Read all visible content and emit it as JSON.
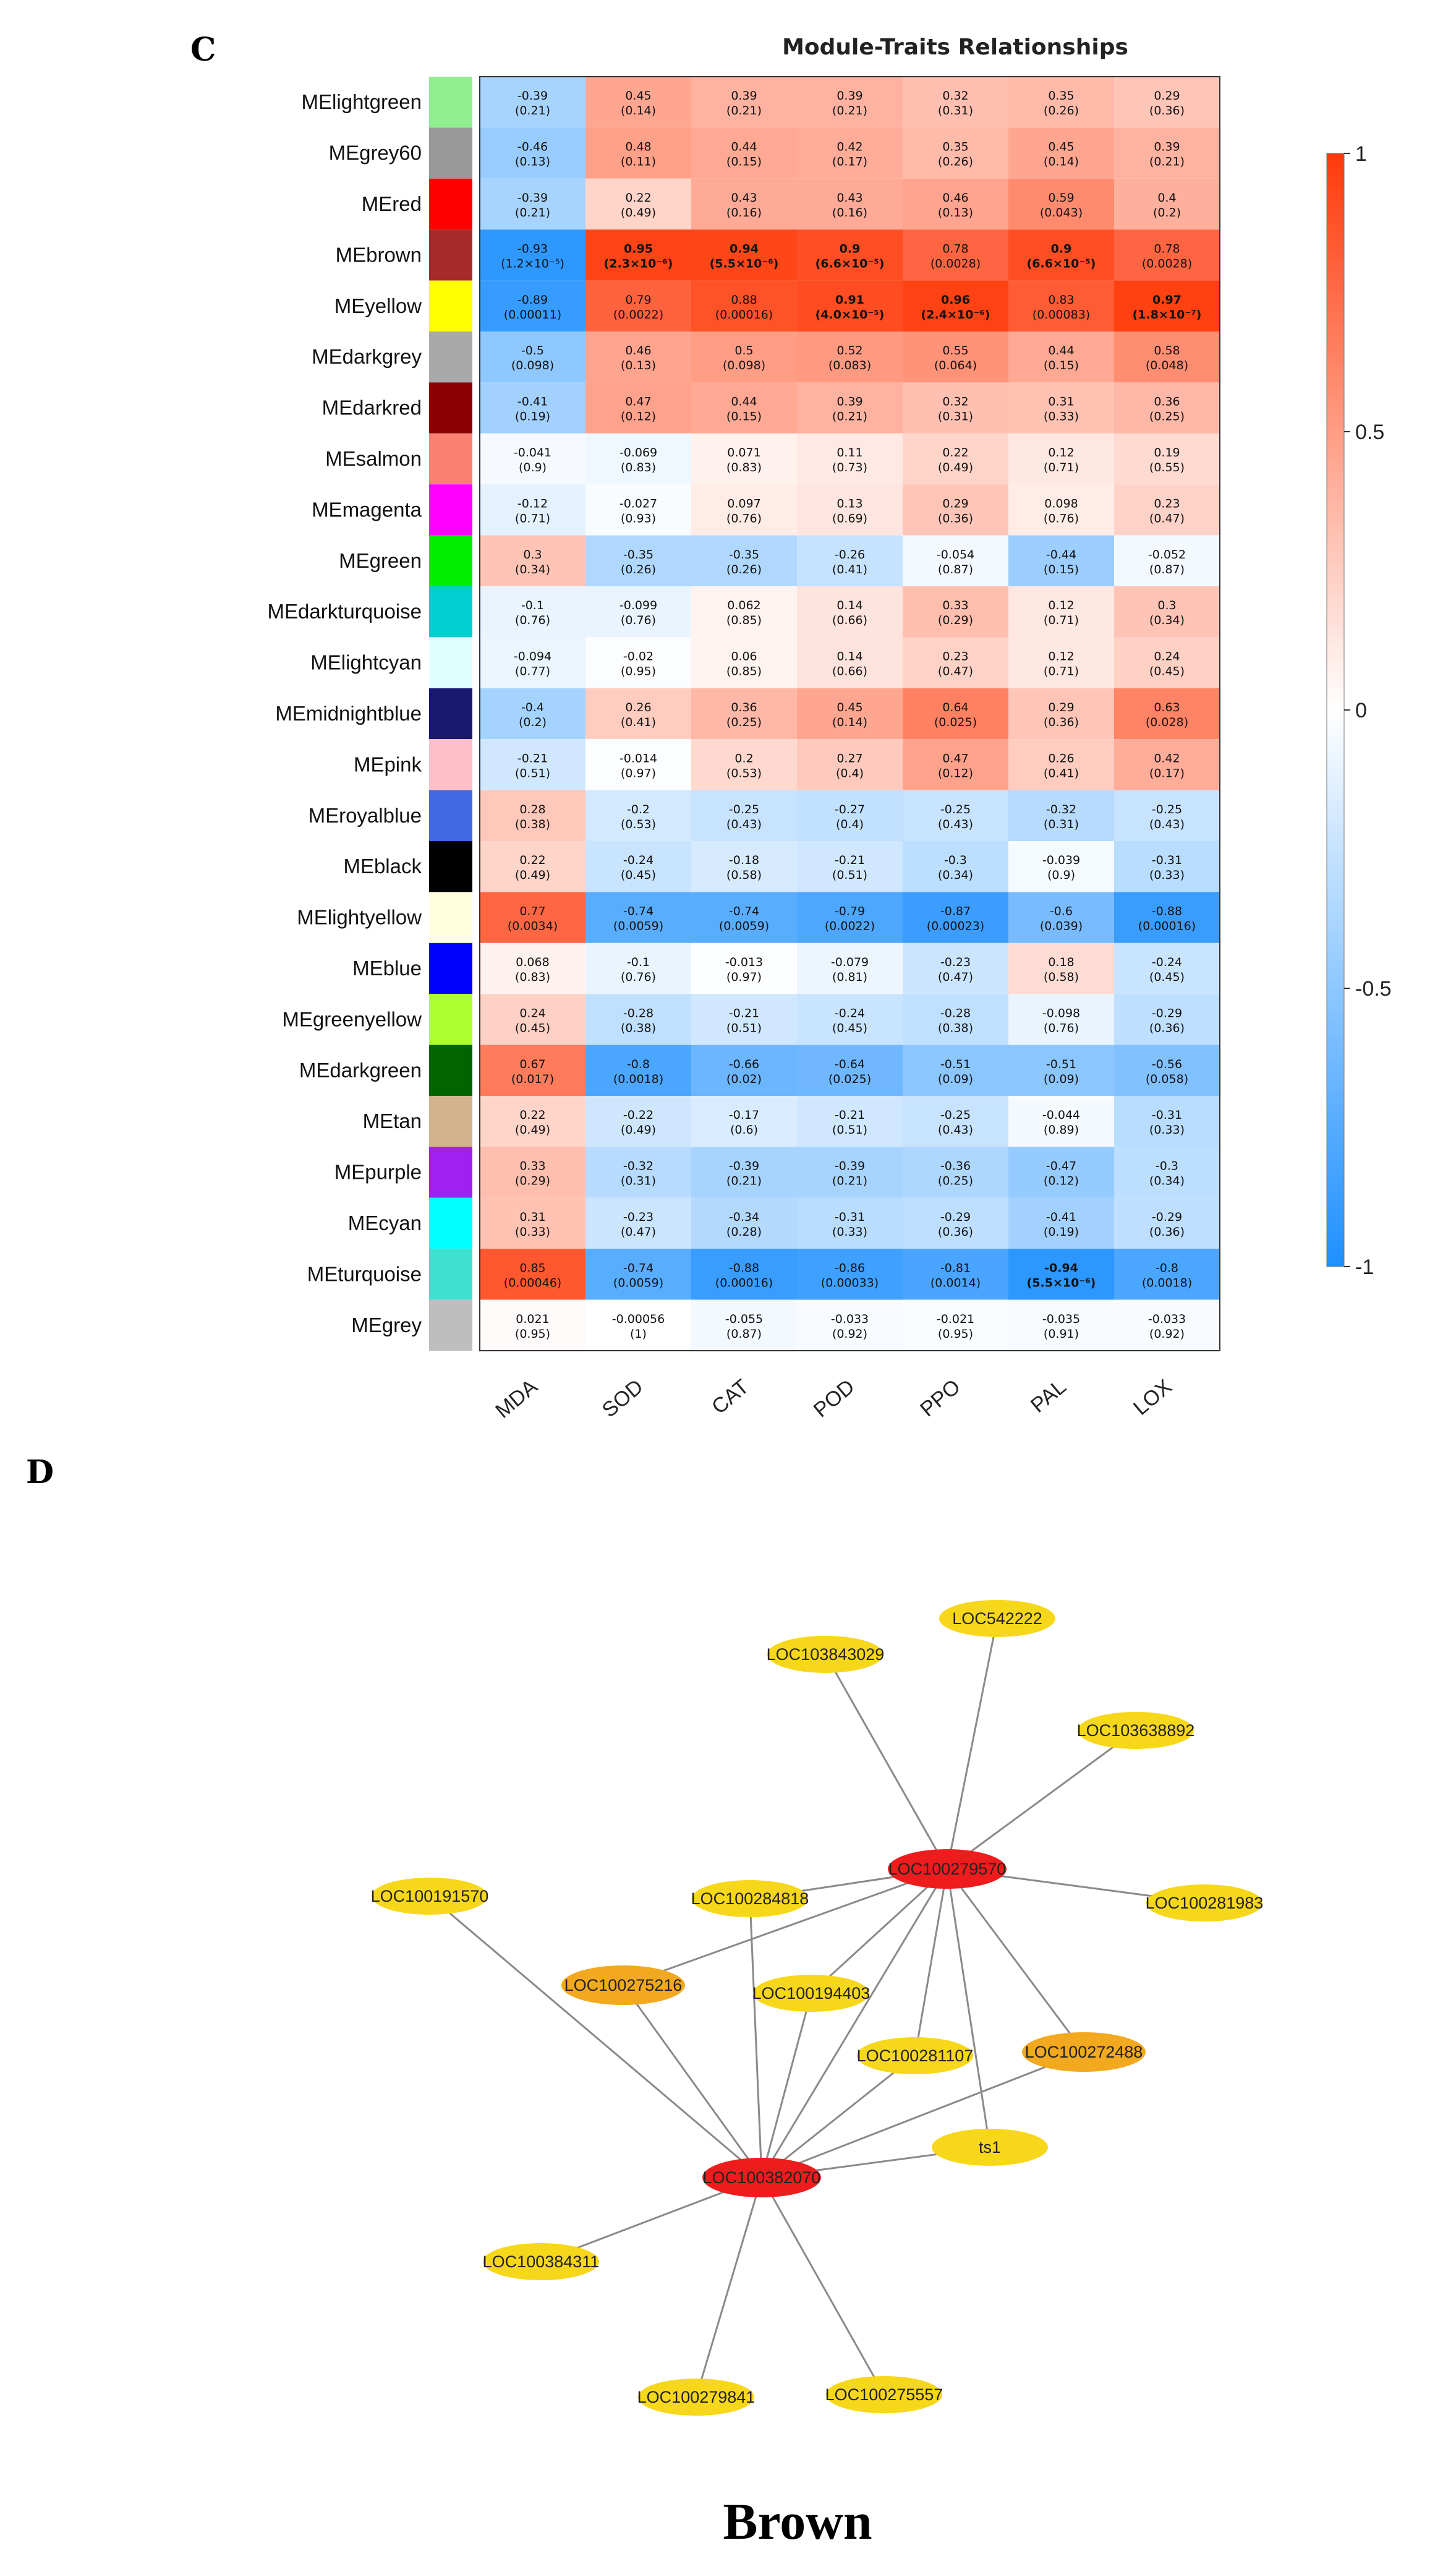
{
  "panels": {
    "c_label": "C",
    "d_label": "D"
  },
  "chart_data": [
    {
      "type": "heatmap",
      "title": "Module-Traits Relationships",
      "traits": [
        "MDA",
        "SOD",
        "CAT",
        "POD",
        "PPO",
        "PAL",
        "LOX"
      ],
      "modules": [
        {
          "name": "MElightgreen",
          "color": "#90EE90",
          "r": [
            -0.39,
            0.45,
            0.39,
            0.39,
            0.32,
            0.35,
            0.29
          ],
          "p": [
            "(0.21)",
            "(0.14)",
            "(0.21)",
            "(0.21)",
            "(0.31)",
            "(0.26)",
            "(0.36)"
          ]
        },
        {
          "name": "MEgrey60",
          "color": "#999999",
          "r": [
            -0.46,
            0.48,
            0.44,
            0.42,
            0.35,
            0.45,
            0.39
          ],
          "p": [
            "(0.13)",
            "(0.11)",
            "(0.15)",
            "(0.17)",
            "(0.26)",
            "(0.14)",
            "(0.21)"
          ]
        },
        {
          "name": "MEred",
          "color": "#FF0000",
          "r": [
            -0.39,
            0.22,
            0.43,
            0.43,
            0.46,
            0.59,
            0.4
          ],
          "p": [
            "(0.21)",
            "(0.49)",
            "(0.16)",
            "(0.16)",
            "(0.13)",
            "(0.043)",
            "(0.2)"
          ]
        },
        {
          "name": "MEbrown",
          "color": "#A52A2A",
          "r": [
            -0.93,
            0.95,
            0.94,
            0.9,
            0.78,
            0.9,
            0.78
          ],
          "p": [
            "(1.2×10⁻⁵)",
            "(2.3×10⁻⁶)",
            "(5.5×10⁻⁶)",
            "(6.6×10⁻⁵)",
            "(0.0028)",
            "(6.6×10⁻⁵)",
            "(0.0028)"
          ],
          "bold": [
            false,
            true,
            true,
            true,
            false,
            true,
            false
          ]
        },
        {
          "name": "MEyellow",
          "color": "#FFFF00",
          "r": [
            -0.89,
            0.79,
            0.88,
            0.91,
            0.96,
            0.83,
            0.97
          ],
          "p": [
            "(0.00011)",
            "(0.0022)",
            "(0.00016)",
            "(4.0×10⁻⁵)",
            "(2.4×10⁻⁶)",
            "(0.00083)",
            "(1.8×10⁻⁷)"
          ],
          "bold": [
            false,
            false,
            false,
            true,
            true,
            false,
            true
          ]
        },
        {
          "name": "MEdarkgrey",
          "color": "#A9A9A9",
          "r": [
            -0.5,
            0.46,
            0.5,
            0.52,
            0.55,
            0.44,
            0.58
          ],
          "p": [
            "(0.098)",
            "(0.13)",
            "(0.098)",
            "(0.083)",
            "(0.064)",
            "(0.15)",
            "(0.048)"
          ]
        },
        {
          "name": "MEdarkred",
          "color": "#8B0000",
          "r": [
            -0.41,
            0.47,
            0.44,
            0.39,
            0.32,
            0.31,
            0.36
          ],
          "p": [
            "(0.19)",
            "(0.12)",
            "(0.15)",
            "(0.21)",
            "(0.31)",
            "(0.33)",
            "(0.25)"
          ]
        },
        {
          "name": "MEsalmon",
          "color": "#FA8072",
          "r": [
            -0.041,
            -0.069,
            0.071,
            0.11,
            0.22,
            0.12,
            0.19
          ],
          "p": [
            "(0.9)",
            "(0.83)",
            "(0.83)",
            "(0.73)",
            "(0.49)",
            "(0.71)",
            "(0.55)"
          ]
        },
        {
          "name": "MEmagenta",
          "color": "#FF00FF",
          "r": [
            -0.12,
            -0.027,
            0.097,
            0.13,
            0.29,
            0.098,
            0.23
          ],
          "p": [
            "(0.71)",
            "(0.93)",
            "(0.76)",
            "(0.69)",
            "(0.36)",
            "(0.76)",
            "(0.47)"
          ]
        },
        {
          "name": "MEgreen",
          "color": "#00EE00",
          "r": [
            0.3,
            -0.35,
            -0.35,
            -0.26,
            -0.054,
            -0.44,
            -0.052
          ],
          "p": [
            "(0.34)",
            "(0.26)",
            "(0.26)",
            "(0.41)",
            "(0.87)",
            "(0.15)",
            "(0.87)"
          ]
        },
        {
          "name": "MEdarkturquoise",
          "color": "#00CED1",
          "r": [
            -0.1,
            -0.099,
            0.062,
            0.14,
            0.33,
            0.12,
            0.3
          ],
          "p": [
            "(0.76)",
            "(0.76)",
            "(0.85)",
            "(0.66)",
            "(0.29)",
            "(0.71)",
            "(0.34)"
          ]
        },
        {
          "name": "MElightcyan",
          "color": "#E0FFFF",
          "r": [
            -0.094,
            -0.02,
            0.06,
            0.14,
            0.23,
            0.12,
            0.24
          ],
          "p": [
            "(0.77)",
            "(0.95)",
            "(0.85)",
            "(0.66)",
            "(0.47)",
            "(0.71)",
            "(0.45)"
          ]
        },
        {
          "name": "MEmidnightblue",
          "color": "#191970",
          "r": [
            -0.4,
            0.26,
            0.36,
            0.45,
            0.64,
            0.29,
            0.63
          ],
          "p": [
            "(0.2)",
            "(0.41)",
            "(0.25)",
            "(0.14)",
            "(0.025)",
            "(0.36)",
            "(0.028)"
          ]
        },
        {
          "name": "MEpink",
          "color": "#FFC0CB",
          "r": [
            -0.21,
            -0.014,
            0.2,
            0.27,
            0.47,
            0.26,
            0.42
          ],
          "p": [
            "(0.51)",
            "(0.97)",
            "(0.53)",
            "(0.4)",
            "(0.12)",
            "(0.41)",
            "(0.17)"
          ]
        },
        {
          "name": "MEroyalblue",
          "color": "#4169E1",
          "r": [
            0.28,
            -0.2,
            -0.25,
            -0.27,
            -0.25,
            -0.32,
            -0.25
          ],
          "p": [
            "(0.38)",
            "(0.53)",
            "(0.43)",
            "(0.4)",
            "(0.43)",
            "(0.31)",
            "(0.43)"
          ]
        },
        {
          "name": "MEblack",
          "color": "#000000",
          "r": [
            0.22,
            -0.24,
            -0.18,
            -0.21,
            -0.3,
            -0.039,
            -0.31
          ],
          "p": [
            "(0.49)",
            "(0.45)",
            "(0.58)",
            "(0.51)",
            "(0.34)",
            "(0.9)",
            "(0.33)"
          ]
        },
        {
          "name": "MElightyellow",
          "color": "#FFFFE0",
          "r": [
            0.77,
            -0.74,
            -0.74,
            -0.79,
            -0.87,
            -0.6,
            -0.88
          ],
          "p": [
            "(0.0034)",
            "(0.0059)",
            "(0.0059)",
            "(0.0022)",
            "(0.00023)",
            "(0.039)",
            "(0.00016)"
          ]
        },
        {
          "name": "MEblue",
          "color": "#0000FF",
          "r": [
            0.068,
            -0.1,
            -0.013,
            -0.079,
            -0.23,
            0.18,
            -0.24
          ],
          "p": [
            "(0.83)",
            "(0.76)",
            "(0.97)",
            "(0.81)",
            "(0.47)",
            "(0.58)",
            "(0.45)"
          ]
        },
        {
          "name": "MEgreenyellow",
          "color": "#ADFF2F",
          "r": [
            0.24,
            -0.28,
            -0.21,
            -0.24,
            -0.28,
            -0.098,
            -0.29
          ],
          "p": [
            "(0.45)",
            "(0.38)",
            "(0.51)",
            "(0.45)",
            "(0.38)",
            "(0.76)",
            "(0.36)"
          ]
        },
        {
          "name": "MEdarkgreen",
          "color": "#006400",
          "r": [
            0.67,
            -0.8,
            -0.66,
            -0.64,
            -0.51,
            -0.51,
            -0.56
          ],
          "p": [
            "(0.017)",
            "(0.0018)",
            "(0.02)",
            "(0.025)",
            "(0.09)",
            "(0.09)",
            "(0.058)"
          ]
        },
        {
          "name": "MEtan",
          "color": "#D2B48C",
          "r": [
            0.22,
            -0.22,
            -0.17,
            -0.21,
            -0.25,
            -0.044,
            -0.31
          ],
          "p": [
            "(0.49)",
            "(0.49)",
            "(0.6)",
            "(0.51)",
            "(0.43)",
            "(0.89)",
            "(0.33)"
          ]
        },
        {
          "name": "MEpurple",
          "color": "#A020F0",
          "r": [
            0.33,
            -0.32,
            -0.39,
            -0.39,
            -0.36,
            -0.47,
            -0.3
          ],
          "p": [
            "(0.29)",
            "(0.31)",
            "(0.21)",
            "(0.21)",
            "(0.25)",
            "(0.12)",
            "(0.34)"
          ]
        },
        {
          "name": "MEcyan",
          "color": "#00FFFF",
          "r": [
            0.31,
            -0.23,
            -0.34,
            -0.31,
            -0.29,
            -0.41,
            -0.29
          ],
          "p": [
            "(0.33)",
            "(0.47)",
            "(0.28)",
            "(0.33)",
            "(0.36)",
            "(0.19)",
            "(0.36)"
          ]
        },
        {
          "name": "MEturquoise",
          "color": "#40E0D0",
          "r": [
            0.85,
            -0.74,
            -0.88,
            -0.86,
            -0.81,
            -0.94,
            -0.8
          ],
          "p": [
            "(0.00046)",
            "(0.0059)",
            "(0.00016)",
            "(0.00033)",
            "(0.0014)",
            "(5.5×10⁻⁶)",
            "(0.0018)"
          ],
          "bold": [
            false,
            false,
            false,
            false,
            false,
            true,
            false
          ]
        },
        {
          "name": "MEgrey",
          "color": "#BEBEBE",
          "r": [
            0.021,
            -0.00056,
            -0.055,
            -0.033,
            -0.021,
            -0.035,
            -0.033
          ],
          "p": [
            "(0.95)",
            "(1)",
            "(0.87)",
            "(0.92)",
            "(0.95)",
            "(0.91)",
            "(0.92)"
          ]
        }
      ],
      "colorbar": {
        "range": [
          -1,
          1
        ],
        "ticks": [
          "1",
          "0.5",
          "0",
          "-0.5",
          "-1"
        ],
        "tick_values": [
          1,
          0.5,
          0,
          -0.5,
          -1
        ],
        "low_color": "#1E90FF",
        "mid_color": "#FFFFFF",
        "high_color": "#FF3A0A"
      }
    },
    {
      "type": "network",
      "caption": "Brown",
      "node_colors": {
        "hub": "#EE1C1C",
        "mid": "#F2A91F",
        "leaf": "#F7D71A"
      },
      "nodes": [
        {
          "id": "LOC542222",
          "tier": "leaf"
        },
        {
          "id": "LOC103843029",
          "tier": "leaf"
        },
        {
          "id": "LOC103638892",
          "tier": "leaf"
        },
        {
          "id": "LOC100279570",
          "tier": "hub"
        },
        {
          "id": "LOC100191570",
          "tier": "leaf"
        },
        {
          "id": "LOC100284818",
          "tier": "leaf"
        },
        {
          "id": "LOC100281983",
          "tier": "leaf"
        },
        {
          "id": "LOC100275216",
          "tier": "mid"
        },
        {
          "id": "LOC100194403",
          "tier": "leaf"
        },
        {
          "id": "LOC100281107",
          "tier": "leaf"
        },
        {
          "id": "LOC100272488",
          "tier": "mid"
        },
        {
          "id": "ts1",
          "tier": "leaf"
        },
        {
          "id": "LOC100382070",
          "tier": "hub"
        },
        {
          "id": "LOC100384311",
          "tier": "leaf"
        },
        {
          "id": "LOC100279841",
          "tier": "leaf"
        },
        {
          "id": "LOC100275557",
          "tier": "leaf"
        }
      ],
      "edges": [
        [
          "LOC100279570",
          "LOC542222"
        ],
        [
          "LOC100279570",
          "LOC103843029"
        ],
        [
          "LOC100279570",
          "LOC103638892"
        ],
        [
          "LOC100279570",
          "LOC100281983"
        ],
        [
          "LOC100279570",
          "LOC100284818"
        ],
        [
          "LOC100279570",
          "LOC100275216"
        ],
        [
          "LOC100279570",
          "LOC100194403"
        ],
        [
          "LOC100279570",
          "LOC100281107"
        ],
        [
          "LOC100279570",
          "LOC100272488"
        ],
        [
          "LOC100279570",
          "ts1"
        ],
        [
          "LOC100279570",
          "LOC100382070"
        ],
        [
          "LOC100382070",
          "LOC100191570"
        ],
        [
          "LOC100382070",
          "LOC100284818"
        ],
        [
          "LOC100382070",
          "LOC100275216"
        ],
        [
          "LOC100382070",
          "LOC100194403"
        ],
        [
          "LOC100382070",
          "LOC100281107"
        ],
        [
          "LOC100382070",
          "LOC100272488"
        ],
        [
          "LOC100382070",
          "ts1"
        ],
        [
          "LOC100382070",
          "LOC100384311"
        ],
        [
          "LOC100382070",
          "LOC100279841"
        ],
        [
          "LOC100382070",
          "LOC100275557"
        ]
      ]
    }
  ]
}
